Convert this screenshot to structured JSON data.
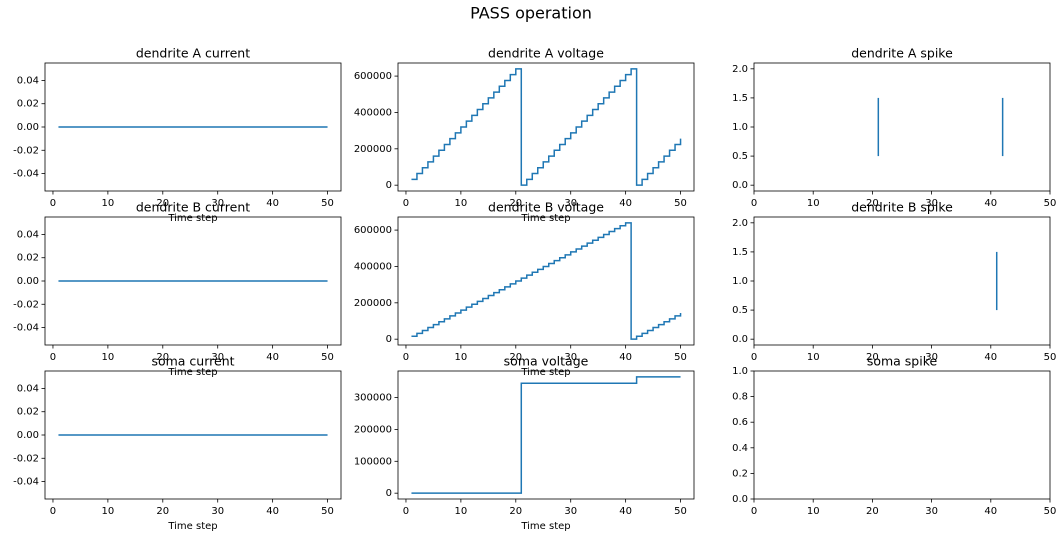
{
  "title": "PASS operation",
  "chart_data": [
    {
      "type": "line",
      "title": "dendrite A current",
      "xlabel": "Time step",
      "color": "#1f77b4",
      "drawstyle": "steps-post",
      "x": [
        1,
        2,
        3,
        4,
        5,
        6,
        7,
        8,
        9,
        10,
        11,
        12,
        13,
        14,
        15,
        16,
        17,
        18,
        19,
        20,
        21,
        22,
        23,
        24,
        25,
        26,
        27,
        28,
        29,
        30,
        31,
        32,
        33,
        34,
        35,
        36,
        37,
        38,
        39,
        40,
        41,
        42,
        43,
        44,
        45,
        46,
        47,
        48,
        49,
        50
      ],
      "values": [
        0,
        0,
        0,
        0,
        0,
        0,
        0,
        0,
        0,
        0,
        0,
        0,
        0,
        0,
        0,
        0,
        0,
        0,
        0,
        0,
        0,
        0,
        0,
        0,
        0,
        0,
        0,
        0,
        0,
        0,
        0,
        0,
        0,
        0,
        0,
        0,
        0,
        0,
        0,
        0,
        0,
        0,
        0,
        0,
        0,
        0,
        0,
        0,
        0,
        0
      ],
      "xlim": [
        -1.45,
        52.45
      ],
      "ylim": [
        -0.055,
        0.055
      ],
      "xticks": [
        0,
        10,
        20,
        30,
        40,
        50
      ],
      "yticks": [
        -0.04,
        -0.02,
        {
          "value": 0,
          "label": "0.00"
        },
        0.02,
        0.04
      ]
    },
    {
      "type": "line",
      "title": "dendrite A voltage",
      "xlabel": "Time step",
      "color": "#1f77b4",
      "drawstyle": "steps-post",
      "x": [
        1,
        2,
        3,
        4,
        5,
        6,
        7,
        8,
        9,
        10,
        11,
        12,
        13,
        14,
        15,
        16,
        17,
        18,
        19,
        20,
        21,
        22,
        23,
        24,
        25,
        26,
        27,
        28,
        29,
        30,
        31,
        32,
        33,
        34,
        35,
        36,
        37,
        38,
        39,
        40,
        41,
        42,
        43,
        44,
        45,
        46,
        47,
        48,
        49,
        50
      ],
      "values": [
        32000,
        64000,
        96000,
        128000,
        160000,
        192000,
        224000,
        256000,
        288000,
        320000,
        352000,
        384000,
        416000,
        448000,
        480000,
        512000,
        544000,
        576000,
        608000,
        640000,
        0,
        32000,
        64000,
        96000,
        128000,
        160000,
        192000,
        224000,
        256000,
        288000,
        320000,
        352000,
        384000,
        416000,
        448000,
        480000,
        512000,
        544000,
        576000,
        608000,
        640000,
        0,
        32000,
        64000,
        96000,
        128000,
        160000,
        192000,
        224000,
        256000
      ],
      "xlim": [
        -1.45,
        52.45
      ],
      "ylim": [
        -32000,
        672000
      ],
      "xticks": [
        0,
        10,
        20,
        30,
        40,
        50
      ],
      "yticks": [
        0,
        200000,
        400000,
        600000
      ]
    },
    {
      "type": "eventplot",
      "title": "dendrite A spike",
      "color": "#1f77b4",
      "positions": [
        21,
        42
      ],
      "lineoffset": 1,
      "linelength": 1,
      "xlim": [
        0,
        50
      ],
      "ylim": [
        -0.1,
        2.1
      ],
      "xticks": [
        0,
        10,
        20,
        30,
        40,
        50
      ],
      "yticks": [
        {
          "value": 0,
          "label": "0.0"
        },
        0.5,
        {
          "value": 1,
          "label": "1.0"
        },
        1.5,
        {
          "value": 2,
          "label": "2.0"
        }
      ]
    },
    {
      "type": "line",
      "title": "dendrite B current",
      "xlabel": "Time step",
      "color": "#1f77b4",
      "drawstyle": "steps-post",
      "x": [
        1,
        2,
        3,
        4,
        5,
        6,
        7,
        8,
        9,
        10,
        11,
        12,
        13,
        14,
        15,
        16,
        17,
        18,
        19,
        20,
        21,
        22,
        23,
        24,
        25,
        26,
        27,
        28,
        29,
        30,
        31,
        32,
        33,
        34,
        35,
        36,
        37,
        38,
        39,
        40,
        41,
        42,
        43,
        44,
        45,
        46,
        47,
        48,
        49,
        50
      ],
      "values": [
        0,
        0,
        0,
        0,
        0,
        0,
        0,
        0,
        0,
        0,
        0,
        0,
        0,
        0,
        0,
        0,
        0,
        0,
        0,
        0,
        0,
        0,
        0,
        0,
        0,
        0,
        0,
        0,
        0,
        0,
        0,
        0,
        0,
        0,
        0,
        0,
        0,
        0,
        0,
        0,
        0,
        0,
        0,
        0,
        0,
        0,
        0,
        0,
        0,
        0
      ],
      "xlim": [
        -1.45,
        52.45
      ],
      "ylim": [
        -0.055,
        0.055
      ],
      "xticks": [
        0,
        10,
        20,
        30,
        40,
        50
      ],
      "yticks": [
        -0.04,
        -0.02,
        {
          "value": 0,
          "label": "0.00"
        },
        0.02,
        0.04
      ]
    },
    {
      "type": "line",
      "title": "dendrite B voltage",
      "xlabel": "Time step",
      "color": "#1f77b4",
      "drawstyle": "steps-post",
      "x": [
        1,
        2,
        3,
        4,
        5,
        6,
        7,
        8,
        9,
        10,
        11,
        12,
        13,
        14,
        15,
        16,
        17,
        18,
        19,
        20,
        21,
        22,
        23,
        24,
        25,
        26,
        27,
        28,
        29,
        30,
        31,
        32,
        33,
        34,
        35,
        36,
        37,
        38,
        39,
        40,
        41,
        42,
        43,
        44,
        45,
        46,
        47,
        48,
        49,
        50
      ],
      "values": [
        16000,
        32000,
        48000,
        64000,
        80000,
        96000,
        112000,
        128000,
        144000,
        160000,
        176000,
        192000,
        208000,
        224000,
        240000,
        256000,
        272000,
        288000,
        304000,
        320000,
        336000,
        352000,
        368000,
        384000,
        400000,
        416000,
        432000,
        448000,
        464000,
        480000,
        496000,
        512000,
        528000,
        544000,
        560000,
        576000,
        592000,
        608000,
        624000,
        640000,
        0,
        16000,
        32000,
        48000,
        64000,
        80000,
        96000,
        112000,
        128000,
        144000
      ],
      "xlim": [
        -1.45,
        52.45
      ],
      "ylim": [
        -32000,
        672000
      ],
      "xticks": [
        0,
        10,
        20,
        30,
        40,
        50
      ],
      "yticks": [
        0,
        200000,
        400000,
        600000
      ]
    },
    {
      "type": "eventplot",
      "title": "dendrite B spike",
      "color": "#1f77b4",
      "positions": [
        41
      ],
      "lineoffset": 1,
      "linelength": 1,
      "xlim": [
        0,
        50
      ],
      "ylim": [
        -0.1,
        2.1
      ],
      "xticks": [
        0,
        10,
        20,
        30,
        40,
        50
      ],
      "yticks": [
        {
          "value": 0,
          "label": "0.0"
        },
        0.5,
        {
          "value": 1,
          "label": "1.0"
        },
        1.5,
        {
          "value": 2,
          "label": "2.0"
        }
      ]
    },
    {
      "type": "line",
      "title": "soma current",
      "xlabel": "Time step",
      "color": "#1f77b4",
      "drawstyle": "steps-post",
      "x": [
        1,
        2,
        3,
        4,
        5,
        6,
        7,
        8,
        9,
        10,
        11,
        12,
        13,
        14,
        15,
        16,
        17,
        18,
        19,
        20,
        21,
        22,
        23,
        24,
        25,
        26,
        27,
        28,
        29,
        30,
        31,
        32,
        33,
        34,
        35,
        36,
        37,
        38,
        39,
        40,
        41,
        42,
        43,
        44,
        45,
        46,
        47,
        48,
        49,
        50
      ],
      "values": [
        0,
        0,
        0,
        0,
        0,
        0,
        0,
        0,
        0,
        0,
        0,
        0,
        0,
        0,
        0,
        0,
        0,
        0,
        0,
        0,
        0,
        0,
        0,
        0,
        0,
        0,
        0,
        0,
        0,
        0,
        0,
        0,
        0,
        0,
        0,
        0,
        0,
        0,
        0,
        0,
        0,
        0,
        0,
        0,
        0,
        0,
        0,
        0,
        0,
        0
      ],
      "xlim": [
        -1.45,
        52.45
      ],
      "ylim": [
        -0.055,
        0.055
      ],
      "xticks": [
        0,
        10,
        20,
        30,
        40,
        50
      ],
      "yticks": [
        -0.04,
        -0.02,
        {
          "value": 0,
          "label": "0.00"
        },
        0.02,
        0.04
      ]
    },
    {
      "type": "line",
      "title": "soma voltage",
      "xlabel": "Time step",
      "color": "#1f77b4",
      "drawstyle": "steps-post",
      "x": [
        1,
        2,
        3,
        4,
        5,
        6,
        7,
        8,
        9,
        10,
        11,
        12,
        13,
        14,
        15,
        16,
        17,
        18,
        19,
        20,
        21,
        22,
        23,
        24,
        25,
        26,
        27,
        28,
        29,
        30,
        31,
        32,
        33,
        34,
        35,
        36,
        37,
        38,
        39,
        40,
        41,
        42,
        43,
        44,
        45,
        46,
        47,
        48,
        49,
        50
      ],
      "values": [
        0,
        0,
        0,
        0,
        0,
        0,
        0,
        0,
        0,
        0,
        0,
        0,
        0,
        0,
        0,
        0,
        0,
        0,
        0,
        0,
        345000,
        345000,
        345000,
        345000,
        345000,
        345000,
        345000,
        345000,
        345000,
        345000,
        345000,
        345000,
        345000,
        345000,
        345000,
        345000,
        345000,
        345000,
        345000,
        345000,
        345000,
        365000,
        365000,
        365000,
        365000,
        365000,
        365000,
        365000,
        365000,
        365000
      ],
      "xlim": [
        -1.45,
        52.45
      ],
      "ylim": [
        -18250,
        383250
      ],
      "xticks": [
        0,
        10,
        20,
        30,
        40,
        50
      ],
      "yticks": [
        0,
        100000,
        200000,
        300000
      ]
    },
    {
      "type": "eventplot",
      "title": "soma spike",
      "color": "#1f77b4",
      "positions": [],
      "lineoffset": 1,
      "linelength": 1,
      "xlim": [
        0,
        50
      ],
      "ylim": [
        0,
        1
      ],
      "xticks": [
        0,
        10,
        20,
        30,
        40,
        50
      ],
      "yticks": [
        {
          "value": 0,
          "label": "0.0"
        },
        0.2,
        0.4,
        0.6,
        0.8,
        {
          "value": 1,
          "label": "1.0"
        }
      ]
    }
  ]
}
